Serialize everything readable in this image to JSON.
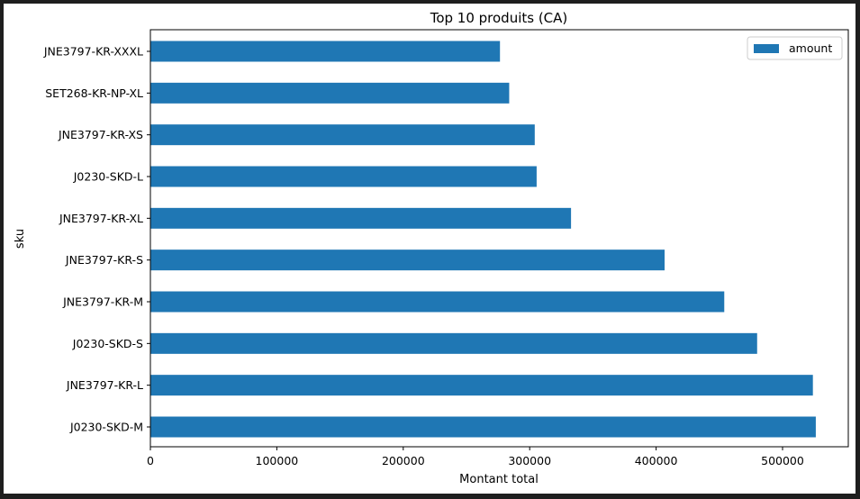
{
  "chart_data": {
    "type": "bar",
    "orientation": "horizontal",
    "title": "Top 10 produits (CA)",
    "xlabel": "Montant total",
    "ylabel": "sku",
    "categories": [
      "JNE3797-KR-XXXL",
      "SET268-KR-NP-XL",
      "JNE3797-KR-XS",
      "J0230-SKD-L",
      "JNE3797-KR-XL",
      "JNE3797-KR-S",
      "JNE3797-KR-M",
      "J0230-SKD-S",
      "JNE3797-KR-L",
      "J0230-SKD-M"
    ],
    "series": [
      {
        "name": "amount",
        "color": "#1f77b4",
        "values": [
          276500,
          283800,
          304000,
          305500,
          332700,
          406700,
          453900,
          479900,
          524000,
          526300
        ]
      }
    ],
    "xlim": [
      0,
      552000
    ],
    "xticks": [
      0,
      100000,
      200000,
      300000,
      400000,
      500000
    ],
    "xtick_labels": [
      "0",
      "100000",
      "200000",
      "300000",
      "400000",
      "500000"
    ],
    "legend": {
      "position": "top-right",
      "entries": [
        "amount"
      ]
    },
    "grid": false
  }
}
